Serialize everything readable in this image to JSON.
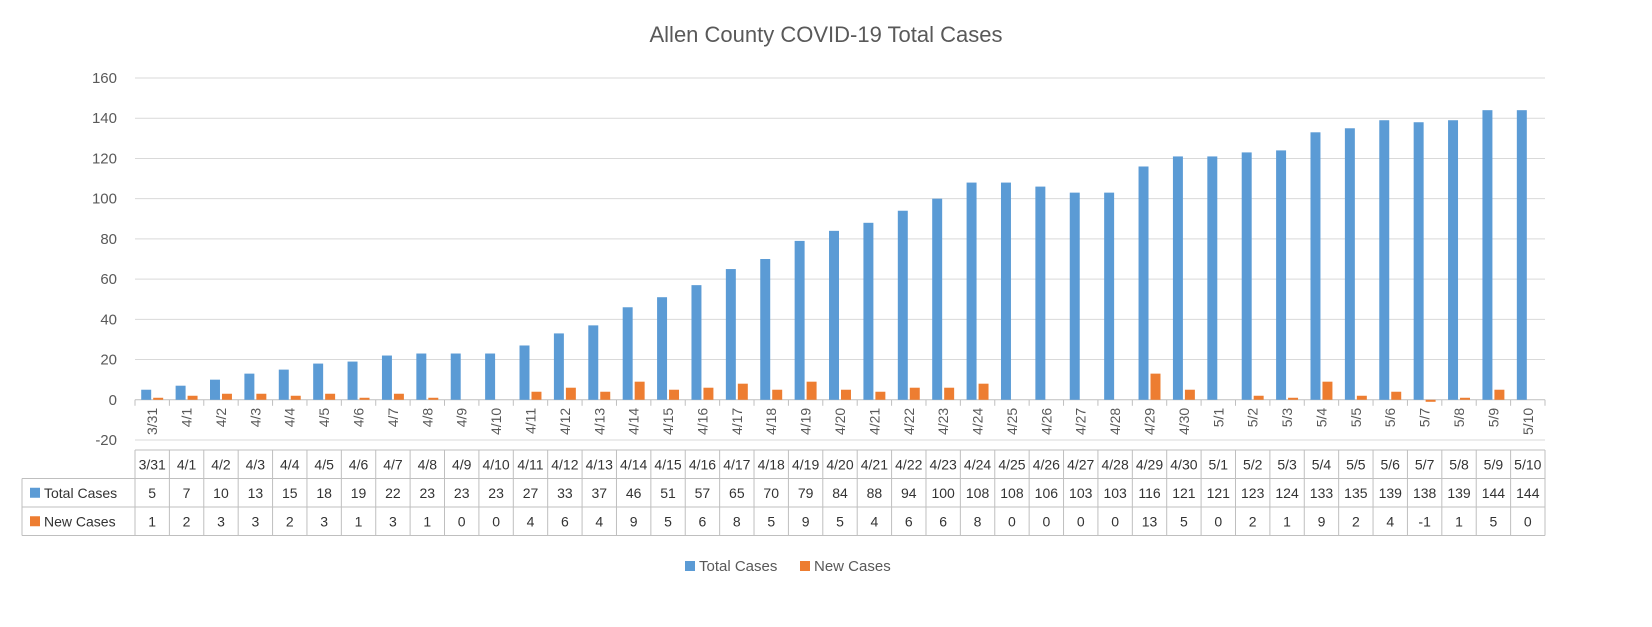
{
  "chart_data": {
    "type": "bar",
    "title": "Allen County COVID-19 Total Cases",
    "xlabel": "",
    "ylabel": "",
    "ylim": [
      -20,
      160
    ],
    "yticks": [
      -20,
      0,
      20,
      40,
      60,
      80,
      100,
      120,
      140,
      160
    ],
    "grid": true,
    "legend_position": "bottom",
    "data_table": true,
    "categories": [
      "3/31",
      "4/1",
      "4/2",
      "4/3",
      "4/4",
      "4/5",
      "4/6",
      "4/7",
      "4/8",
      "4/9",
      "4/10",
      "4/11",
      "4/12",
      "4/13",
      "4/14",
      "4/15",
      "4/16",
      "4/17",
      "4/18",
      "4/19",
      "4/20",
      "4/21",
      "4/22",
      "4/23",
      "4/24",
      "4/25",
      "4/26",
      "4/27",
      "4/28",
      "4/29",
      "4/30",
      "5/1",
      "5/2",
      "5/3",
      "5/4",
      "5/5",
      "5/6",
      "5/7",
      "5/8",
      "5/9",
      "5/10"
    ],
    "series": [
      {
        "name": "Total Cases",
        "color": "#5B9BD5",
        "values": [
          5,
          7,
          10,
          13,
          15,
          18,
          19,
          22,
          23,
          23,
          23,
          27,
          33,
          37,
          46,
          51,
          57,
          65,
          70,
          79,
          84,
          88,
          94,
          100,
          108,
          108,
          106,
          103,
          103,
          116,
          121,
          121,
          123,
          124,
          133,
          135,
          139,
          138,
          139,
          144,
          144
        ]
      },
      {
        "name": "New Cases",
        "color": "#ED7D31",
        "values": [
          1,
          2,
          3,
          3,
          2,
          3,
          1,
          3,
          1,
          0,
          0,
          4,
          6,
          4,
          9,
          5,
          6,
          8,
          5,
          9,
          5,
          4,
          6,
          6,
          8,
          0,
          0,
          0,
          0,
          13,
          5,
          0,
          2,
          1,
          9,
          2,
          4,
          -1,
          1,
          5,
          0
        ]
      }
    ]
  }
}
